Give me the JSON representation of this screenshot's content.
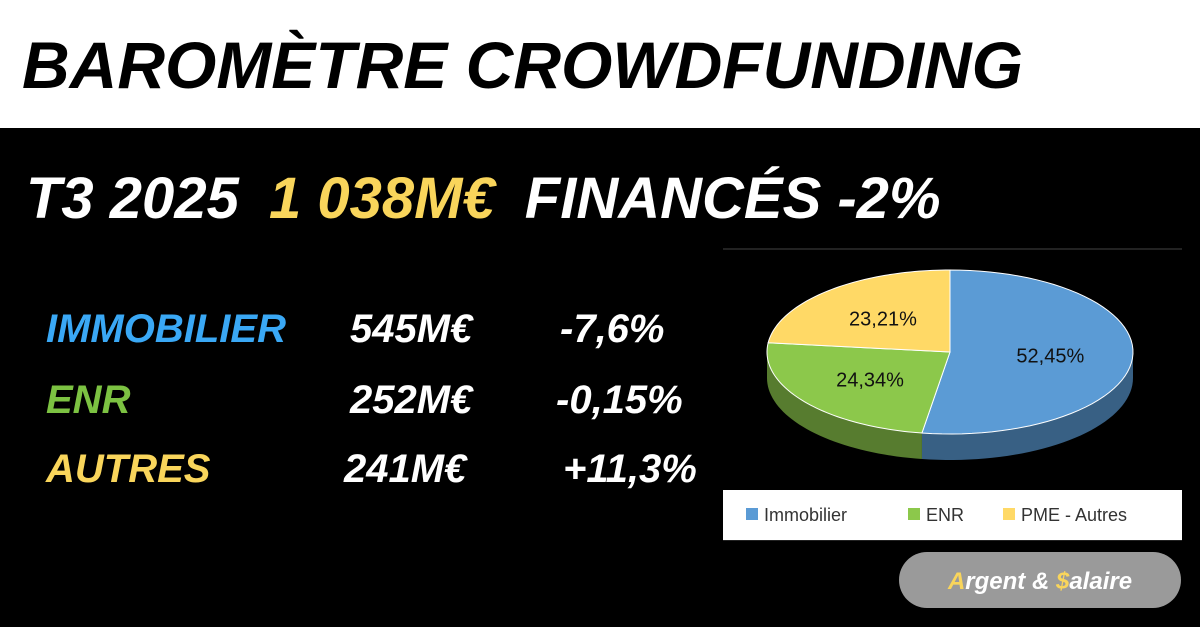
{
  "header": {
    "title": "BAROMÈTRE CROWDFUNDING"
  },
  "headline": {
    "period": "T3 2025",
    "amount": "1 038M€",
    "rest": "FINANCÉS -2%"
  },
  "table": {
    "rows": [
      [
        "IMMOBILIER",
        "545M€",
        "-7,6%"
      ],
      [
        "ENR",
        "252M€",
        "-0,15%"
      ],
      [
        "AUTRES",
        "241M€",
        "+11,3%"
      ]
    ]
  },
  "chart_data": {
    "type": "pie",
    "categories": [
      "Immobilier",
      "ENR",
      "PME - Autres"
    ],
    "values": [
      52.45,
      24.34,
      23.21
    ],
    "value_labels": [
      "52,45%",
      "24,34%",
      "23,21%"
    ],
    "colors": [
      "#5b9bd5",
      "#8cc84b",
      "#ffd966"
    ]
  },
  "badge": {
    "parts": [
      "A",
      "rgent & ",
      "$",
      "alaire"
    ]
  }
}
